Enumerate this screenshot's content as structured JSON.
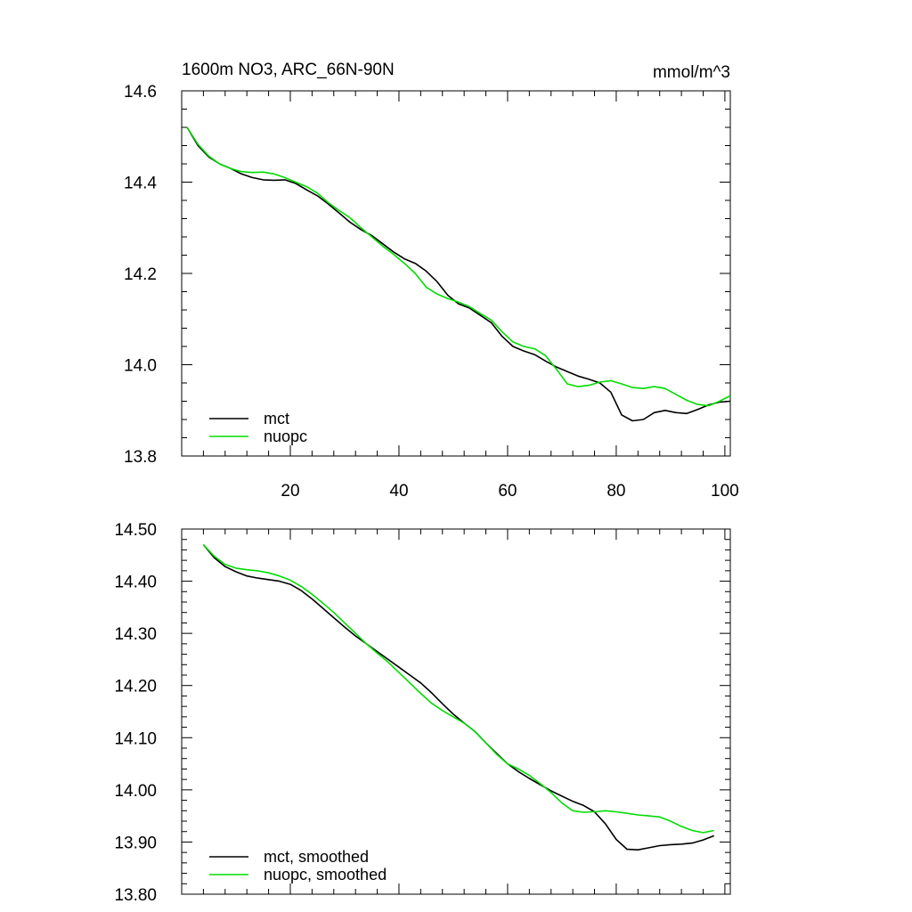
{
  "page": {
    "title_left": "1600m NO3, ARC_66N-90N",
    "title_right": "mmol/m^3"
  },
  "chart_data": [
    {
      "type": "line",
      "title": "1600m NO3, ARC_66N-90N",
      "units": "mmol/m^3",
      "xlim": [
        0,
        101
      ],
      "ylim": [
        13.8,
        14.6
      ],
      "x_ticks": [
        20,
        40,
        60,
        80,
        100
      ],
      "x_tick_labels": [
        "20",
        "40",
        "60",
        "80",
        "100"
      ],
      "y_ticks": [
        13.8,
        14.0,
        14.2,
        14.4,
        14.6
      ],
      "y_tick_labels": [
        "13.8",
        "14.0",
        "14.2",
        "14.4",
        "14.6"
      ],
      "legend_position": "bottom-left",
      "colors": {
        "mct": "#000000",
        "nuopc": "#00dd00"
      },
      "series": [
        {
          "name": "mct",
          "color": "#000000",
          "x": [
            1,
            3,
            5,
            7,
            9,
            11,
            13,
            15,
            17,
            19,
            21,
            23,
            25,
            27,
            29,
            31,
            33,
            35,
            37,
            39,
            41,
            43,
            45,
            47,
            49,
            51,
            53,
            55,
            57,
            59,
            61,
            63,
            65,
            67,
            69,
            71,
            73,
            75,
            77,
            79,
            81,
            83,
            85,
            87,
            89,
            91,
            93,
            95,
            97,
            99,
            101
          ],
          "values": [
            14.52,
            14.48,
            14.455,
            14.44,
            14.43,
            14.418,
            14.41,
            14.405,
            14.404,
            14.405,
            14.397,
            14.383,
            14.37,
            14.352,
            14.332,
            14.312,
            14.296,
            14.283,
            14.265,
            14.247,
            14.232,
            14.222,
            14.205,
            14.182,
            14.152,
            14.133,
            14.124,
            14.108,
            14.092,
            14.062,
            14.04,
            14.03,
            14.022,
            14.008,
            13.995,
            13.985,
            13.975,
            13.968,
            13.96,
            13.94,
            13.89,
            13.877,
            13.88,
            13.895,
            13.9,
            13.895,
            13.893,
            13.902,
            13.912,
            13.918,
            13.92
          ]
        },
        {
          "name": "nuopc",
          "color": "#00dd00",
          "x": [
            1,
            3,
            5,
            7,
            9,
            11,
            13,
            15,
            17,
            19,
            21,
            23,
            25,
            27,
            29,
            31,
            33,
            35,
            37,
            39,
            41,
            43,
            45,
            47,
            49,
            51,
            53,
            55,
            57,
            59,
            61,
            63,
            65,
            67,
            69,
            71,
            73,
            75,
            77,
            79,
            81,
            83,
            85,
            87,
            89,
            91,
            93,
            95,
            97,
            99,
            101
          ],
          "values": [
            14.52,
            14.483,
            14.457,
            14.44,
            14.43,
            14.423,
            14.421,
            14.422,
            14.418,
            14.41,
            14.4,
            14.39,
            14.376,
            14.355,
            14.338,
            14.322,
            14.3,
            14.28,
            14.26,
            14.242,
            14.222,
            14.2,
            14.17,
            14.155,
            14.145,
            14.137,
            14.127,
            14.112,
            14.098,
            14.072,
            14.05,
            14.04,
            14.035,
            14.02,
            13.99,
            13.958,
            13.952,
            13.955,
            13.962,
            13.965,
            13.958,
            13.95,
            13.948,
            13.952,
            13.948,
            13.935,
            13.922,
            13.913,
            13.91,
            13.92,
            13.932
          ]
        }
      ]
    },
    {
      "type": "line",
      "xlim": [
        0,
        101
      ],
      "ylim": [
        13.8,
        14.5
      ],
      "x_ticks": [
        20,
        40,
        60,
        80,
        100
      ],
      "y_ticks": [
        13.8,
        13.9,
        14.0,
        14.1,
        14.2,
        14.3,
        14.4,
        14.5
      ],
      "y_tick_labels": [
        "13.80",
        "13.90",
        "14.00",
        "14.10",
        "14.20",
        "14.30",
        "14.40",
        "14.50"
      ],
      "legend_position": "bottom-left",
      "colors": {
        "mct, smoothed": "#000000",
        "nuopc, smoothed": "#00dd00"
      },
      "series": [
        {
          "name": "mct, smoothed",
          "color": "#000000",
          "x": [
            4,
            6,
            8,
            10,
            12,
            14,
            16,
            18,
            20,
            22,
            24,
            26,
            28,
            30,
            32,
            34,
            36,
            38,
            40,
            42,
            44,
            46,
            48,
            50,
            52,
            54,
            56,
            58,
            60,
            62,
            64,
            66,
            68,
            70,
            72,
            74,
            76,
            78,
            80,
            82,
            84,
            86,
            88,
            90,
            92,
            94,
            96,
            98
          ],
          "values": [
            14.47,
            14.445,
            14.428,
            14.418,
            14.41,
            14.406,
            14.403,
            14.4,
            14.394,
            14.382,
            14.366,
            14.348,
            14.33,
            14.312,
            14.295,
            14.28,
            14.265,
            14.25,
            14.235,
            14.22,
            14.205,
            14.186,
            14.165,
            14.145,
            14.128,
            14.112,
            14.09,
            14.07,
            14.05,
            14.035,
            14.022,
            14.01,
            13.998,
            13.988,
            13.978,
            13.97,
            13.958,
            13.935,
            13.905,
            13.886,
            13.885,
            13.889,
            13.893,
            13.895,
            13.896,
            13.898,
            13.904,
            13.912
          ]
        },
        {
          "name": "nuopc, smoothed",
          "color": "#00dd00",
          "x": [
            4,
            6,
            8,
            10,
            12,
            14,
            16,
            18,
            20,
            22,
            24,
            26,
            28,
            30,
            32,
            34,
            36,
            38,
            40,
            42,
            44,
            46,
            48,
            50,
            52,
            54,
            56,
            58,
            60,
            62,
            64,
            66,
            68,
            70,
            72,
            74,
            76,
            78,
            80,
            82,
            84,
            86,
            88,
            90,
            92,
            94,
            96,
            98
          ],
          "values": [
            14.47,
            14.448,
            14.432,
            14.425,
            14.422,
            14.42,
            14.416,
            14.41,
            14.402,
            14.39,
            14.375,
            14.358,
            14.34,
            14.32,
            14.3,
            14.28,
            14.262,
            14.245,
            14.225,
            14.205,
            14.185,
            14.166,
            14.152,
            14.14,
            14.128,
            14.112,
            14.09,
            14.068,
            14.05,
            14.04,
            14.028,
            14.012,
            13.995,
            13.975,
            13.96,
            13.957,
            13.958,
            13.96,
            13.958,
            13.955,
            13.952,
            13.95,
            13.948,
            13.94,
            13.93,
            13.922,
            13.918,
            13.922
          ]
        }
      ]
    }
  ]
}
